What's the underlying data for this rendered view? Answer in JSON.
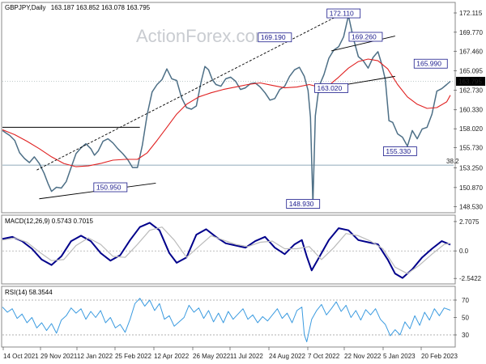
{
  "header": {
    "symbol": "GBPJPY,Daily",
    "ohlc": "163.187 163.852 163.078 163.795"
  },
  "watermark": "ActionForex.com",
  "colors": {
    "price": "#4d6f86",
    "ma": "#e02020",
    "trendline": "#000000",
    "fib": "#6d8fa3",
    "macd": "#00008b",
    "signal": "#bbbbbb",
    "rsi": "#3b9be0",
    "annotation": "#1a1a8c",
    "current_price_bg": "#000000"
  },
  "chart_data": [
    {
      "type": "line",
      "panel": "price",
      "y_ticks": [
        "172.115",
        "169.770",
        "167.460",
        "165.095",
        "162.730",
        "160.330",
        "158.020",
        "155.730",
        "153.250",
        "150.870",
        "148.530"
      ],
      "x_ticks": [
        "14 Oct 2021",
        "29 Nov 2021",
        "12 Jan 2022",
        "25 Feb 2022",
        "12 Apr 2022",
        "26 May 2022",
        "11 Jul 2022",
        "24 Aug 2022",
        "7 Oct 2022",
        "22 Nov 2022",
        "5 Jan 2023",
        "20 Feb 2023"
      ],
      "ylim": [
        147.9,
        173.1
      ],
      "current_price": "163.795",
      "fib_label": "38.2",
      "fib_level": 153.6,
      "series": [
        {
          "role": "price",
          "x": [
            0,
            3,
            6,
            10,
            14,
            18,
            22,
            26,
            30,
            34,
            37,
            40,
            44,
            48,
            52,
            56,
            60,
            64,
            68,
            72,
            75,
            78,
            82,
            86,
            90,
            94,
            98,
            102,
            106,
            110,
            114,
            118,
            122,
            126,
            130,
            134,
            138,
            142,
            146,
            150,
            154,
            158,
            162,
            165,
            168,
            171,
            174,
            178,
            182,
            186,
            190,
            194,
            198,
            202,
            206,
            210,
            214,
            218,
            222,
            226,
            230,
            234,
            238,
            242,
            246,
            249,
            251,
            253,
            255,
            258,
            262,
            266,
            270,
            274,
            278,
            282,
            286,
            290,
            294,
            298,
            302,
            306,
            309,
            312,
            315,
            318,
            322,
            326,
            330,
            334,
            338,
            342,
            346,
            350,
            354,
            358,
            362,
            365
          ],
          "y": [
            157.8,
            157.5,
            157.2,
            156.6,
            155.1,
            154.4,
            153.9,
            154.6,
            153.8,
            152.6,
            151.4,
            150.4,
            150.9,
            150.8,
            151.6,
            153.3,
            155.0,
            155.7,
            156.2,
            155.6,
            154.8,
            155.3,
            156.5,
            156.8,
            156.3,
            155.6,
            155.0,
            154.3,
            153.3,
            153.3,
            156.0,
            159.8,
            162.5,
            163.4,
            164.0,
            165.3,
            164.1,
            163.9,
            161.8,
            160.6,
            160.4,
            160.8,
            163.8,
            165.6,
            165.2,
            164.0,
            163.4,
            163.2,
            164.1,
            164.3,
            163.8,
            162.8,
            163.0,
            163.5,
            163.6,
            163.1,
            162.4,
            161.5,
            161.7,
            162.8,
            163.2,
            164.4,
            165.2,
            165.5,
            164.4,
            162.7,
            159.4,
            148.9,
            159.6,
            163.2,
            164.6,
            166.6,
            167.6,
            168.0,
            169.2,
            171.8,
            169.0,
            166.8,
            166.3,
            165.4,
            166.7,
            167.4,
            165.9,
            164.0,
            159.0,
            158.8,
            157.4,
            157.0,
            155.9,
            157.8,
            156.8,
            158.0,
            158.2,
            159.8,
            162.6,
            162.9,
            163.4,
            163.8
          ]
        },
        {
          "role": "moving-average",
          "x": [
            0,
            10,
            20,
            30,
            40,
            50,
            60,
            70,
            80,
            90,
            100,
            110,
            118,
            126,
            134,
            142,
            150,
            160,
            170,
            180,
            190,
            200,
            210,
            220,
            230,
            240,
            250,
            258,
            266,
            274,
            282,
            290,
            298,
            306,
            314,
            322,
            330,
            338,
            346,
            354,
            362,
            365
          ],
          "y": [
            157.9,
            157.3,
            156.5,
            155.6,
            154.6,
            153.8,
            153.4,
            153.5,
            153.8,
            154.2,
            154.3,
            154.3,
            155.1,
            156.6,
            158.2,
            159.8,
            161.0,
            161.9,
            162.4,
            162.8,
            163.1,
            163.4,
            163.6,
            163.3,
            163.0,
            163.1,
            163.4,
            163.1,
            163.3,
            164.3,
            165.4,
            166.2,
            166.5,
            166.3,
            165.3,
            163.4,
            161.9,
            161.0,
            160.5,
            160.6,
            161.3,
            162.1
          ]
        }
      ],
      "annotations": [
        {
          "label": "172.110",
          "x": 278,
          "y": 172.11
        },
        {
          "label": "169.190",
          "x": 222,
          "y": 169.19
        },
        {
          "label": "169.260",
          "x": 296,
          "y": 169.26
        },
        {
          "label": "165.990",
          "x": 349,
          "y": 165.99
        },
        {
          "label": "163.020",
          "x": 268,
          "y": 163.02
        },
        {
          "label": "155.330",
          "x": 324,
          "y": 155.33
        },
        {
          "label": "150.950",
          "x": 88,
          "y": 150.95
        },
        {
          "label": "148.930",
          "x": 245,
          "y": 148.93
        }
      ],
      "trendlines": [
        {
          "x1": 0,
          "y1": 158.2,
          "x2": 112,
          "y2": 158.2
        },
        {
          "x1": 30,
          "y1": 149.5,
          "x2": 125,
          "y2": 151.4
        },
        {
          "x1": 28,
          "y1": 153.0,
          "x2": 279,
          "y2": 172.2
        },
        {
          "x1": 264,
          "y1": 163.0,
          "x2": 320,
          "y2": 164.4
        },
        {
          "x1": 268,
          "y1": 167.5,
          "x2": 320,
          "y2": 169.3
        }
      ]
    },
    {
      "type": "line",
      "panel": "macd",
      "title": "MACD(12,26,9) 0.5743 0.7015",
      "y_ticks": [
        "2.7075",
        "0.0",
        "-2.5422"
      ],
      "ylim": [
        -2.9,
        3.0
      ],
      "zero_line": 0,
      "series": [
        {
          "name": "macd",
          "x": [
            0,
            8,
            16,
            24,
            32,
            40,
            48,
            56,
            64,
            72,
            80,
            88,
            96,
            104,
            112,
            120,
            128,
            136,
            142,
            150,
            158,
            166,
            174,
            182,
            190,
            198,
            206,
            214,
            222,
            230,
            238,
            244,
            248,
            252,
            258,
            266,
            274,
            282,
            290,
            298,
            306,
            314,
            320,
            326,
            334,
            342,
            350,
            358,
            365
          ],
          "y": [
            1.1,
            1.3,
            0.9,
            0.2,
            -0.8,
            -1.3,
            -0.5,
            0.9,
            1.4,
            0.9,
            -0.2,
            -0.9,
            -0.4,
            1.0,
            2.2,
            2.6,
            1.9,
            -0.2,
            -1.1,
            -0.6,
            1.5,
            2.0,
            1.3,
            0.7,
            0.5,
            0.3,
            0.9,
            1.3,
            0.3,
            -0.3,
            0.6,
            1.0,
            -0.5,
            -1.8,
            -0.6,
            1.0,
            2.1,
            1.9,
            1.0,
            0.8,
            0.6,
            -0.8,
            -2.1,
            -2.5,
            -1.7,
            -0.6,
            0.2,
            0.9,
            0.57
          ]
        },
        {
          "name": "signal",
          "x": [
            0,
            10,
            20,
            30,
            40,
            50,
            60,
            70,
            80,
            90,
            100,
            110,
            120,
            130,
            140,
            150,
            160,
            170,
            180,
            190,
            200,
            210,
            220,
            230,
            240,
            250,
            260,
            270,
            280,
            290,
            300,
            310,
            320,
            330,
            340,
            350,
            360,
            365
          ],
          "y": [
            1.0,
            1.2,
            0.8,
            -0.1,
            -0.9,
            -0.8,
            0.5,
            1.2,
            0.6,
            -0.5,
            -0.6,
            0.6,
            1.9,
            2.2,
            1.0,
            -0.6,
            0.4,
            1.4,
            1.0,
            0.6,
            0.4,
            0.8,
            0.9,
            0.2,
            0.2,
            0.4,
            -0.8,
            0.3,
            1.6,
            1.4,
            0.9,
            0.2,
            -1.5,
            -2.1,
            -1.3,
            -0.3,
            0.6,
            0.7
          ]
        }
      ]
    },
    {
      "type": "line",
      "panel": "rsi",
      "title": "RSI(14) 58.3544",
      "y_ticks": [
        "70",
        "50",
        "30"
      ],
      "ylim": [
        17,
        83
      ],
      "levels": [
        70,
        30
      ],
      "series": [
        {
          "name": "rsi",
          "x": [
            0,
            4,
            8,
            12,
            16,
            20,
            24,
            28,
            32,
            36,
            40,
            44,
            48,
            52,
            56,
            60,
            64,
            68,
            72,
            76,
            80,
            84,
            88,
            92,
            96,
            100,
            104,
            108,
            112,
            116,
            120,
            124,
            128,
            132,
            136,
            140,
            144,
            148,
            152,
            156,
            160,
            164,
            168,
            172,
            176,
            180,
            184,
            188,
            192,
            196,
            200,
            204,
            208,
            212,
            216,
            220,
            224,
            228,
            232,
            236,
            240,
            244,
            246,
            248,
            252,
            256,
            260,
            264,
            268,
            272,
            276,
            280,
            284,
            288,
            292,
            296,
            300,
            304,
            308,
            312,
            316,
            320,
            324,
            328,
            332,
            336,
            340,
            344,
            348,
            352,
            356,
            360,
            365
          ],
          "y": [
            62,
            56,
            60,
            49,
            54,
            44,
            50,
            38,
            44,
            35,
            43,
            32,
            47,
            52,
            61,
            55,
            60,
            48,
            57,
            50,
            58,
            44,
            50,
            38,
            42,
            33,
            48,
            66,
            72,
            63,
            70,
            58,
            66,
            48,
            52,
            40,
            45,
            50,
            64,
            56,
            61,
            49,
            58,
            45,
            55,
            44,
            57,
            48,
            54,
            60,
            48,
            53,
            44,
            51,
            46,
            53,
            60,
            49,
            55,
            44,
            58,
            62,
            30,
            22,
            48,
            58,
            65,
            53,
            60,
            68,
            57,
            64,
            50,
            58,
            47,
            59,
            53,
            60,
            48,
            42,
            29,
            36,
            30,
            45,
            37,
            52,
            41,
            56,
            47,
            60,
            52,
            61,
            58.35
          ]
        }
      ]
    }
  ]
}
